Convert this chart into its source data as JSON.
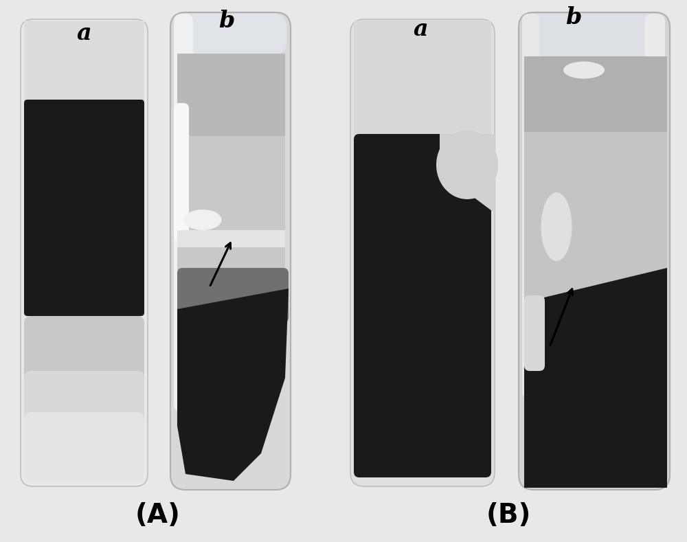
{
  "background_color": "#e8e8e8",
  "fig_width": 10.0,
  "fig_height": 7.89,
  "label_A": "(A)",
  "label_B": "(B)",
  "label_a1": "a",
  "label_b1": "b",
  "label_a2": "a",
  "label_b2": "b",
  "label_fontsize": 24,
  "caption_fontsize": 28,
  "tube_bg": "#f0f0f0",
  "tube_edge": "#c0c0c0",
  "dark_color": "#1a1a1a",
  "mid_gray": "#909090",
  "light_gray": "#d0d0d0",
  "white_color": "#f5f5f5",
  "very_light": "#e8ecf0"
}
